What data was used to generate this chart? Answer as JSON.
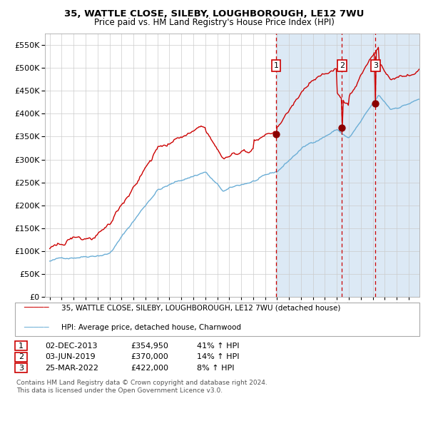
{
  "title1": "35, WATTLE CLOSE, SILEBY, LOUGHBOROUGH, LE12 7WU",
  "title2": "Price paid vs. HM Land Registry's House Price Index (HPI)",
  "legend1": "35, WATTLE CLOSE, SILEBY, LOUGHBOROUGH, LE12 7WU (detached house)",
  "legend2": "HPI: Average price, detached house, Charnwood",
  "sale1_date": "02-DEC-2013",
  "sale1_price": 354950,
  "sale1_pct": "41% ↑ HPI",
  "sale2_date": "03-JUN-2019",
  "sale2_price": 370000,
  "sale2_pct": "14% ↑ HPI",
  "sale3_date": "25-MAR-2022",
  "sale3_price": 422000,
  "sale3_pct": "8% ↑ HPI",
  "footer1": "Contains HM Land Registry data © Crown copyright and database right 2024.",
  "footer2": "This data is licensed under the Open Government Licence v3.0.",
  "ylim_min": 0,
  "ylim_max": 575000,
  "hpi_color": "#6baed6",
  "property_color": "#cc0000",
  "sale_dot_color": "#8b0000",
  "vline_color": "#cc0000",
  "bg_shade_color": "#dce9f5",
  "grid_color": "#cccccc",
  "sale1_year": 2013.92,
  "sale2_year": 2019.42,
  "sale3_year": 2022.23,
  "xmin": 1994.6,
  "xmax": 2025.9
}
